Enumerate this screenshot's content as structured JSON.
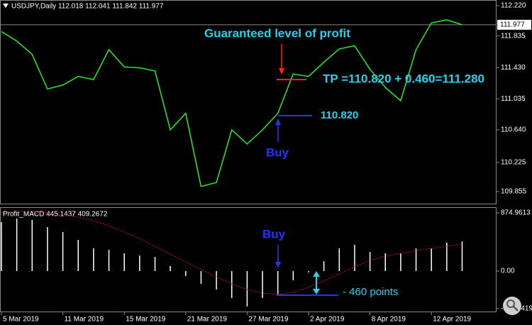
{
  "chart_data": [
    {
      "type": "line",
      "legend_text": "USDJPY,Daily  112.018 112.041 111.842 111.977",
      "color": "#22ee22",
      "categories": [
        "5 Mar 2019",
        null,
        null,
        null,
        "11 Mar 2019",
        null,
        null,
        null,
        "15 Mar 2019",
        null,
        null,
        null,
        "21 Mar 2019",
        null,
        null,
        null,
        "27 Mar 2019",
        null,
        null,
        null,
        "2 Apr 2019",
        null,
        null,
        null,
        "8 Apr 2019",
        null,
        null,
        null,
        "12 Apr 2019",
        null,
        null
      ],
      "values": [
        111.89,
        111.77,
        111.6,
        111.16,
        111.21,
        111.32,
        111.28,
        111.66,
        111.44,
        111.43,
        111.39,
        110.64,
        110.85,
        109.92,
        109.97,
        110.64,
        110.46,
        110.64,
        110.85,
        111.35,
        111.32,
        111.5,
        111.67,
        111.71,
        111.41,
        111.18,
        111.01,
        111.66,
        112.0,
        112.04,
        111.977
      ],
      "current_price": 111.977,
      "ylim": [
        109.701,
        112.292
      ],
      "yticks": [
        {
          "value": 112.22,
          "label": "112.220"
        },
        111.835,
        {
          "value": 111.43,
          "label": "111.430"
        },
        111.035,
        {
          "value": 110.64,
          "label": "110.640"
        },
        110.225,
        109.855
      ],
      "annotations": [
        {
          "text": "Guaranteed level of profit"
        },
        {
          "text": "TP =110.820 + 0.460=111.280",
          "value": 111.28,
          "color": "#ff2020"
        },
        {
          "text": "110.820",
          "value": 110.82,
          "color": "#2233ff"
        },
        {
          "text": "Buy"
        }
      ]
    },
    {
      "type": "macd",
      "legend_text": "Profit_MACD 445.1437 409.2672",
      "color": "#ffffff",
      "signal_color": "#cc1111",
      "values": [
        736,
        790,
        768,
        662,
        587,
        469,
        341,
        320,
        267,
        235,
        213,
        75,
        -75,
        -192,
        -277,
        -405,
        -533,
        -405,
        -363,
        -139,
        -20,
        149,
        341,
        395,
        288,
        267,
        267,
        341,
        341,
        427,
        445.1437
      ],
      "signal": [
        880,
        900,
        900,
        880,
        850,
        810,
        758,
        683,
        587,
        491,
        373,
        256,
        139,
        21,
        -85,
        -192,
        -277,
        -331,
        -352,
        -320,
        -245,
        -149,
        -43,
        64,
        160,
        224,
        267,
        309,
        341,
        373,
        409.2672
      ],
      "ylim": [
        -619,
        950
      ],
      "yticks": [
        874.9613,
        {
          "value": 0,
          "label": "0.00"
        },
        -565.5419
      ],
      "annotations": [
        {
          "text": "Buy"
        },
        {
          "text": "- 460 points"
        }
      ]
    }
  ]
}
